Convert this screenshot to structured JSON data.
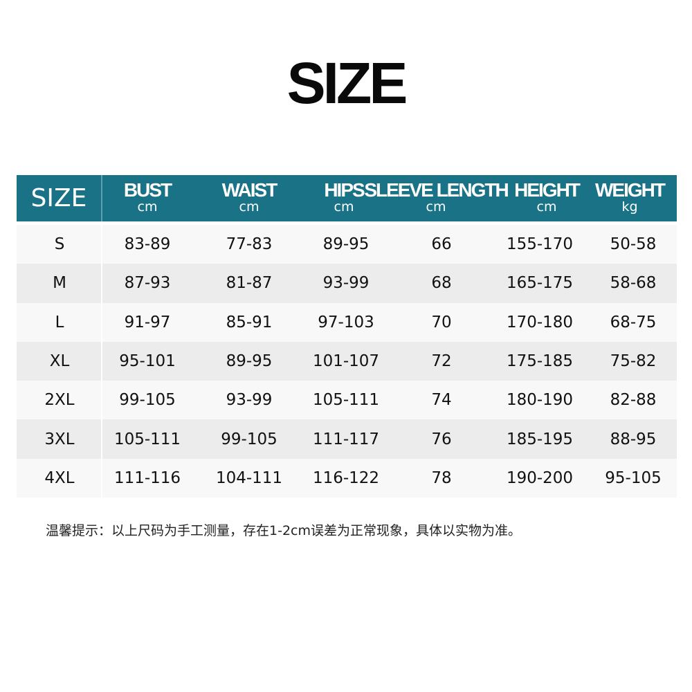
{
  "title": "SIZE",
  "table": {
    "size_header": "SIZE",
    "header_color": "#1a7286",
    "columns": [
      {
        "label": "BUST",
        "unit": "cm"
      },
      {
        "label": "WAIST",
        "unit": "cm"
      },
      {
        "label": "HIPS",
        "unit": "cm"
      },
      {
        "label": "SLEEVE LENGTH",
        "unit": "cm"
      },
      {
        "label": "HEIGHT",
        "unit": "cm"
      },
      {
        "label": "WEIGHT",
        "unit": "kg"
      }
    ],
    "rows": [
      [
        "S",
        "83-89",
        "77-83",
        "89-95",
        "66",
        "155-170",
        "50-58"
      ],
      [
        "M",
        "87-93",
        "81-87",
        "93-99",
        "68",
        "165-175",
        "58-68"
      ],
      [
        "L",
        "91-97",
        "85-91",
        "97-103",
        "70",
        "170-180",
        "68-75"
      ],
      [
        "XL",
        "95-101",
        "89-95",
        "101-107",
        "72",
        "175-185",
        "75-82"
      ],
      [
        "2XL",
        "99-105",
        "93-99",
        "105-111",
        "74",
        "180-190",
        "82-88"
      ],
      [
        "3XL",
        "105-111",
        "99-105",
        "111-117",
        "76",
        "185-195",
        "88-95"
      ],
      [
        "4XL",
        "111-116",
        "104-111",
        "116-122",
        "78",
        "190-200",
        "95-105"
      ]
    ]
  },
  "note": "温馨提示：以上尺码为手工测量，存在1-2cm误差为正常现象，具体以实物为准。"
}
